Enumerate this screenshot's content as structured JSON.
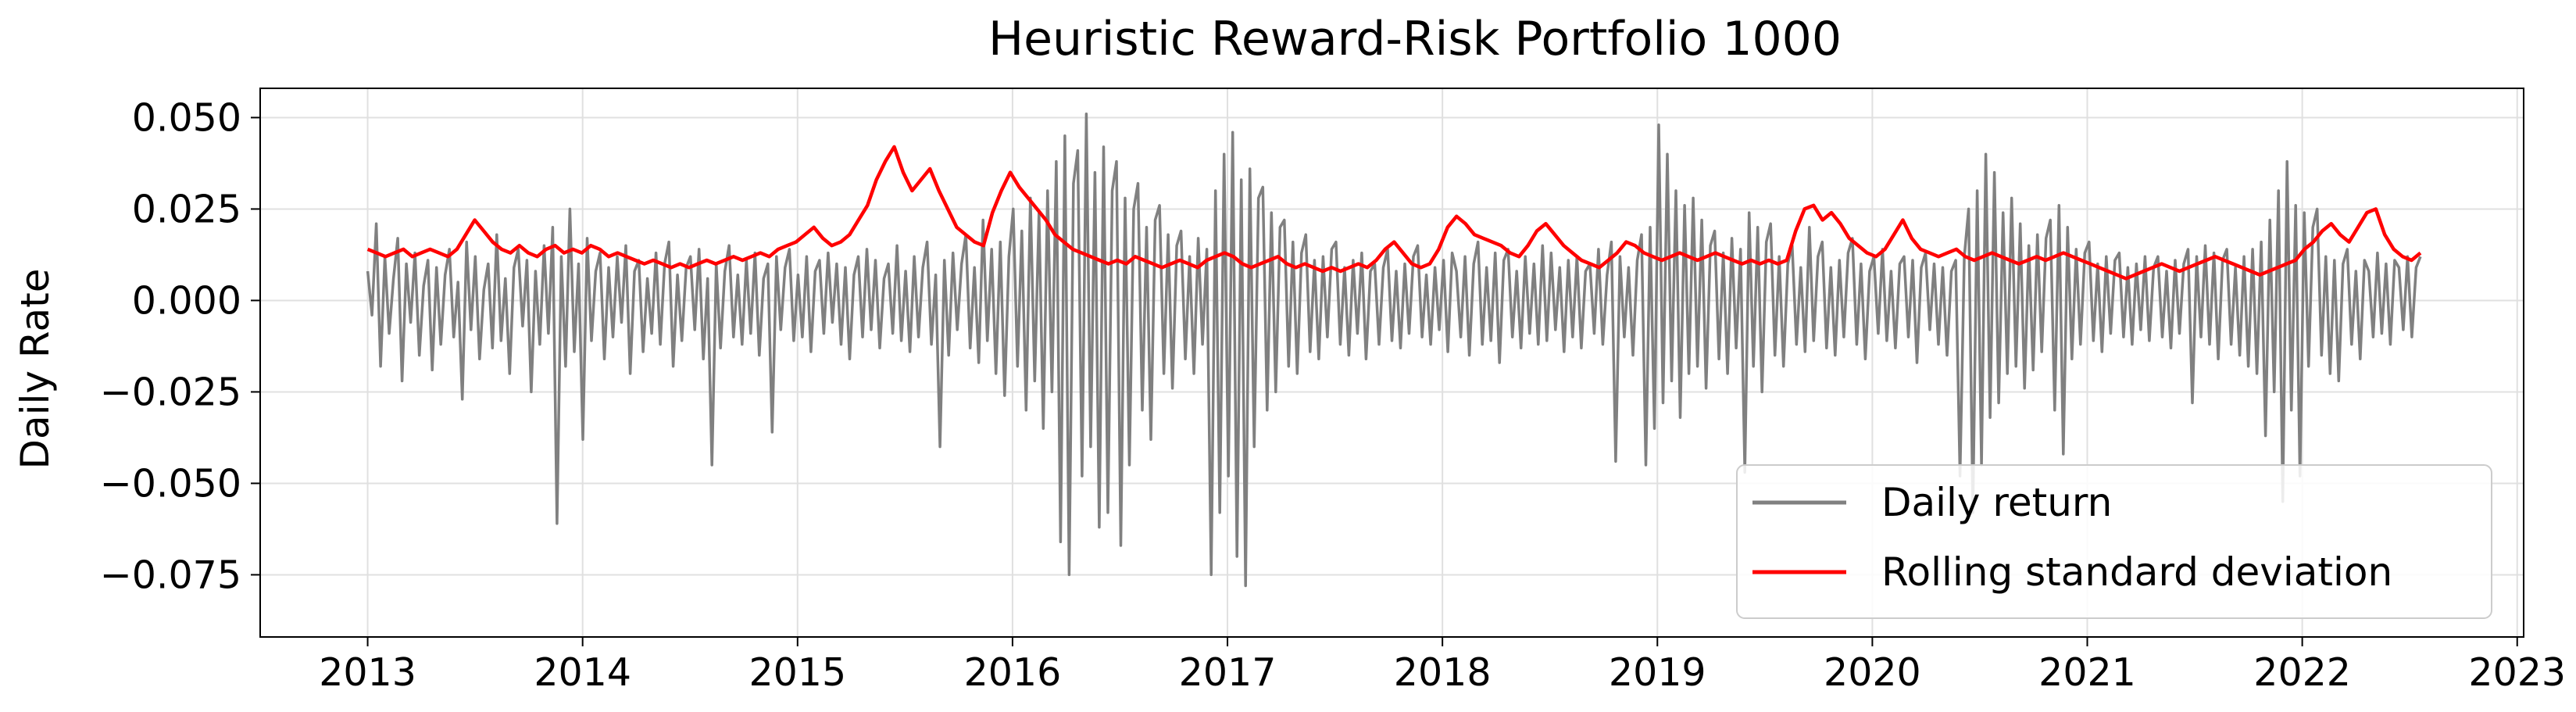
{
  "chart_data": {
    "type": "line",
    "title": "Heuristic Reward-Risk Portfolio 1000",
    "xlabel": "",
    "ylabel": "Daily Rate",
    "xlim": [
      2012.5,
      2023.03
    ],
    "ylim": [
      -0.092,
      0.058
    ],
    "x_ticks": [
      "2013",
      "2014",
      "2015",
      "2016",
      "2017",
      "2018",
      "2019",
      "2020",
      "2021",
      "2022",
      "2023"
    ],
    "y_ticks": [
      "0.050",
      "0.025",
      "0.000",
      "−0.025",
      "−0.050",
      "−0.075"
    ],
    "y_tick_values": [
      0.05,
      0.025,
      0.0,
      -0.025,
      -0.05,
      -0.075
    ],
    "grid": true,
    "legend_position": "lower-right",
    "colors": {
      "daily_return": "#808080",
      "rolling_std": "#ff0000",
      "grid": "#e0e0e0",
      "axes": "#000000"
    },
    "series": [
      {
        "name": "Daily return",
        "color": "#808080",
        "approximate": true,
        "x_start": 2013.0,
        "x_end": 2022.55,
        "values": [
          0.008,
          -0.004,
          0.021,
          -0.018,
          0.012,
          -0.009,
          0.006,
          0.017,
          -0.022,
          0.01,
          -0.006,
          0.013,
          -0.015,
          0.004,
          0.011,
          -0.019,
          0.009,
          -0.012,
          0.007,
          0.014,
          -0.01,
          0.005,
          -0.027,
          0.016,
          -0.008,
          0.012,
          -0.016,
          0.003,
          0.01,
          -0.013,
          0.018,
          -0.011,
          0.006,
          -0.02,
          0.009,
          0.014,
          -0.007,
          0.011,
          -0.025,
          0.008,
          -0.012,
          0.015,
          -0.009,
          0.02,
          -0.061,
          0.012,
          -0.018,
          0.025,
          -0.014,
          0.01,
          -0.038,
          0.017,
          -0.011,
          0.008,
          0.013,
          -0.016,
          0.009,
          -0.01,
          0.012,
          -0.006,
          0.015,
          -0.02,
          0.008,
          0.011,
          -0.014,
          0.006,
          -0.009,
          0.013,
          -0.012,
          0.01,
          0.016,
          -0.018,
          0.007,
          -0.011,
          0.009,
          0.012,
          -0.008,
          0.014,
          -0.016,
          0.006,
          -0.045,
          0.01,
          -0.013,
          0.008,
          0.015,
          -0.01,
          0.007,
          -0.012,
          0.011,
          -0.009,
          0.013,
          -0.015,
          0.006,
          0.01,
          -0.036,
          0.012,
          -0.008,
          0.009,
          0.014,
          -0.011,
          0.007,
          -0.01,
          0.012,
          -0.014,
          0.008,
          0.011,
          -0.009,
          0.013,
          -0.006,
          0.01,
          -0.012,
          0.009,
          -0.016,
          0.007,
          0.012,
          -0.01,
          0.014,
          -0.008,
          0.011,
          -0.013,
          0.006,
          0.01,
          -0.009,
          0.015,
          -0.011,
          0.008,
          -0.014,
          0.012,
          -0.01,
          0.009,
          0.016,
          -0.012,
          0.007,
          -0.04,
          0.011,
          -0.015,
          0.013,
          -0.008,
          0.01,
          0.018,
          -0.013,
          0.009,
          -0.017,
          0.022,
          -0.011,
          0.014,
          -0.02,
          0.016,
          -0.026,
          0.012,
          0.025,
          -0.018,
          0.019,
          -0.03,
          0.028,
          -0.022,
          0.024,
          -0.035,
          0.03,
          -0.025,
          0.038,
          -0.066,
          0.045,
          -0.075,
          0.032,
          0.041,
          -0.048,
          0.051,
          -0.04,
          0.035,
          -0.062,
          0.042,
          -0.058,
          0.03,
          0.038,
          -0.067,
          0.028,
          -0.045,
          0.025,
          0.032,
          -0.03,
          0.02,
          -0.038,
          0.022,
          0.026,
          -0.02,
          0.018,
          -0.024,
          0.015,
          0.019,
          -0.016,
          0.012,
          -0.02,
          0.017,
          -0.012,
          0.014,
          -0.075,
          0.03,
          -0.058,
          0.04,
          -0.048,
          0.046,
          -0.07,
          0.033,
          -0.078,
          0.036,
          -0.04,
          0.028,
          0.031,
          -0.03,
          0.024,
          -0.025,
          0.02,
          0.022,
          -0.018,
          0.016,
          -0.02,
          0.013,
          0.018,
          -0.014,
          0.011,
          -0.016,
          0.012,
          -0.01,
          0.014,
          0.016,
          -0.012,
          0.009,
          -0.015,
          0.011,
          -0.009,
          0.013,
          -0.016,
          0.008,
          0.01,
          -0.012,
          0.009,
          0.014,
          -0.011,
          0.008,
          -0.013,
          0.01,
          -0.009,
          0.012,
          0.015,
          -0.01,
          0.007,
          -0.012,
          0.009,
          -0.008,
          0.011,
          -0.014,
          0.013,
          0.008,
          -0.01,
          0.012,
          -0.015,
          0.01,
          0.016,
          -0.012,
          0.009,
          -0.011,
          0.013,
          -0.017,
          0.011,
          0.014,
          -0.01,
          0.008,
          -0.013,
          0.012,
          -0.009,
          0.01,
          -0.012,
          0.015,
          -0.011,
          0.013,
          -0.008,
          0.009,
          -0.014,
          0.011,
          -0.01,
          0.012,
          -0.013,
          0.008,
          0.01,
          -0.009,
          0.014,
          -0.012,
          0.007,
          0.016,
          -0.044,
          0.012,
          -0.01,
          0.009,
          -0.015,
          0.011,
          0.018,
          -0.045,
          0.02,
          -0.035,
          0.048,
          -0.028,
          0.04,
          -0.022,
          0.03,
          -0.032,
          0.026,
          -0.02,
          0.028,
          -0.018,
          0.022,
          -0.024,
          0.015,
          0.019,
          -0.016,
          0.013,
          -0.02,
          0.017,
          -0.013,
          0.014,
          -0.047,
          0.024,
          -0.018,
          0.02,
          -0.025,
          0.016,
          0.021,
          -0.015,
          0.012,
          -0.018,
          0.01,
          0.015,
          -0.012,
          0.009,
          -0.014,
          0.02,
          -0.011,
          0.012,
          0.016,
          -0.013,
          0.009,
          -0.015,
          0.011,
          -0.01,
          0.013,
          0.017,
          -0.012,
          0.01,
          -0.016,
          0.008,
          0.012,
          -0.009,
          0.014,
          -0.011,
          0.008,
          -0.013,
          0.01,
          0.012,
          -0.01,
          0.011,
          -0.017,
          0.009,
          0.013,
          -0.008,
          0.01,
          -0.012,
          0.009,
          -0.015,
          0.008,
          0.011,
          -0.048,
          0.012,
          0.025,
          -0.058,
          0.03,
          -0.045,
          0.04,
          -0.032,
          0.035,
          -0.028,
          0.024,
          -0.02,
          0.028,
          -0.018,
          0.021,
          -0.024,
          0.015,
          -0.019,
          0.018,
          -0.014,
          0.017,
          0.022,
          -0.03,
          0.026,
          -0.042,
          0.02,
          -0.016,
          0.014,
          -0.012,
          0.013,
          0.016,
          -0.011,
          0.01,
          -0.014,
          0.012,
          -0.009,
          0.011,
          0.013,
          -0.01,
          0.009,
          -0.012,
          0.01,
          -0.008,
          0.012,
          -0.011,
          0.009,
          0.012,
          -0.01,
          0.008,
          -0.013,
          0.011,
          -0.009,
          0.01,
          0.014,
          -0.028,
          0.012,
          -0.01,
          0.015,
          -0.012,
          0.013,
          -0.016,
          0.011,
          0.014,
          -0.012,
          0.009,
          -0.015,
          0.012,
          -0.018,
          0.014,
          -0.02,
          0.016,
          -0.037,
          0.022,
          -0.025,
          0.03,
          -0.055,
          0.038,
          -0.03,
          0.026,
          -0.048,
          0.024,
          -0.018,
          0.02,
          0.025,
          -0.015,
          0.012,
          -0.02,
          0.011,
          -0.022,
          0.01,
          0.014,
          -0.012,
          0.008,
          -0.016,
          0.011,
          0.008,
          -0.01,
          0.013,
          -0.009,
          0.01,
          -0.012,
          0.011,
          0.009,
          -0.008,
          0.012,
          -0.01,
          0.009,
          0.012
        ]
      },
      {
        "name": "Rolling standard deviation",
        "color": "#ff0000",
        "approximate": true,
        "x_start": 2013.0,
        "x_end": 2022.55,
        "values": [
          0.014,
          0.013,
          0.012,
          0.013,
          0.014,
          0.012,
          0.013,
          0.014,
          0.013,
          0.012,
          0.014,
          0.018,
          0.022,
          0.019,
          0.016,
          0.014,
          0.013,
          0.015,
          0.013,
          0.012,
          0.014,
          0.015,
          0.013,
          0.014,
          0.013,
          0.015,
          0.014,
          0.012,
          0.013,
          0.012,
          0.011,
          0.01,
          0.011,
          0.01,
          0.009,
          0.01,
          0.009,
          0.01,
          0.011,
          0.01,
          0.011,
          0.012,
          0.011,
          0.012,
          0.013,
          0.012,
          0.014,
          0.015,
          0.016,
          0.018,
          0.02,
          0.017,
          0.015,
          0.016,
          0.018,
          0.022,
          0.026,
          0.033,
          0.038,
          0.042,
          0.035,
          0.03,
          0.033,
          0.036,
          0.03,
          0.025,
          0.02,
          0.018,
          0.016,
          0.015,
          0.024,
          0.03,
          0.035,
          0.031,
          0.028,
          0.025,
          0.022,
          0.018,
          0.016,
          0.014,
          0.013,
          0.012,
          0.011,
          0.01,
          0.011,
          0.01,
          0.012,
          0.011,
          0.01,
          0.009,
          0.01,
          0.011,
          0.01,
          0.009,
          0.011,
          0.012,
          0.013,
          0.012,
          0.01,
          0.009,
          0.01,
          0.011,
          0.012,
          0.01,
          0.009,
          0.01,
          0.009,
          0.008,
          0.009,
          0.008,
          0.009,
          0.01,
          0.009,
          0.011,
          0.014,
          0.016,
          0.013,
          0.01,
          0.009,
          0.01,
          0.014,
          0.02,
          0.023,
          0.021,
          0.018,
          0.017,
          0.016,
          0.015,
          0.013,
          0.012,
          0.015,
          0.019,
          0.021,
          0.018,
          0.015,
          0.013,
          0.011,
          0.01,
          0.009,
          0.011,
          0.013,
          0.016,
          0.015,
          0.013,
          0.012,
          0.011,
          0.012,
          0.013,
          0.012,
          0.011,
          0.012,
          0.013,
          0.012,
          0.011,
          0.01,
          0.011,
          0.01,
          0.011,
          0.01,
          0.011,
          0.019,
          0.025,
          0.026,
          0.022,
          0.024,
          0.021,
          0.017,
          0.015,
          0.013,
          0.012,
          0.014,
          0.018,
          0.022,
          0.017,
          0.014,
          0.013,
          0.012,
          0.013,
          0.014,
          0.012,
          0.011,
          0.012,
          0.013,
          0.012,
          0.011,
          0.01,
          0.011,
          0.012,
          0.011,
          0.012,
          0.013,
          0.012,
          0.011,
          0.01,
          0.009,
          0.008,
          0.007,
          0.006,
          0.007,
          0.008,
          0.009,
          0.01,
          0.009,
          0.008,
          0.009,
          0.01,
          0.011,
          0.012,
          0.011,
          0.01,
          0.009,
          0.008,
          0.007,
          0.008,
          0.009,
          0.01,
          0.011,
          0.014,
          0.016,
          0.019,
          0.021,
          0.018,
          0.016,
          0.02,
          0.024,
          0.025,
          0.018,
          0.014,
          0.012,
          0.011,
          0.013
        ]
      }
    ]
  }
}
